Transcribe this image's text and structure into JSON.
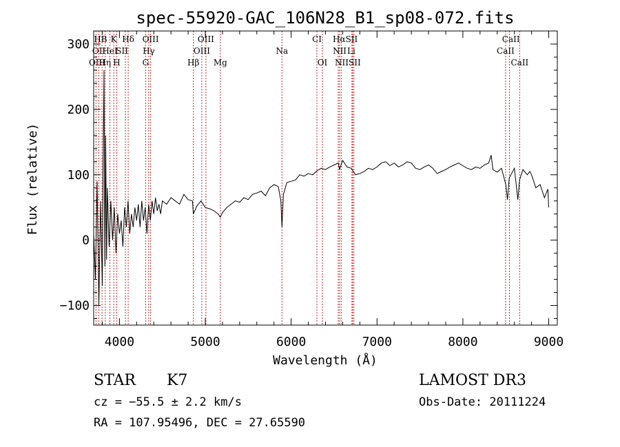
{
  "chart_data": {
    "type": "line",
    "title": "spec-55920-GAC_106N28_B1_sp08-072.fits",
    "xlabel": "Wavelength (Å)",
    "ylabel": "Flux (relative)",
    "xlim": [
      3700,
      9100
    ],
    "ylim": [
      -130,
      320
    ],
    "xticks": [
      4000,
      5000,
      6000,
      7000,
      8000,
      9000
    ],
    "yticks": [
      -100,
      0,
      100,
      200,
      300
    ],
    "grid": false,
    "series": [
      {
        "name": "flux",
        "x": [
          3700,
          3720,
          3740,
          3760,
          3780,
          3800,
          3810,
          3820,
          3830,
          3840,
          3850,
          3860,
          3880,
          3900,
          3920,
          3940,
          3960,
          3980,
          4000,
          4020,
          4040,
          4060,
          4080,
          4100,
          4120,
          4140,
          4160,
          4180,
          4200,
          4220,
          4240,
          4260,
          4280,
          4300,
          4320,
          4340,
          4360,
          4380,
          4400,
          4420,
          4440,
          4460,
          4480,
          4500,
          4550,
          4600,
          4650,
          4700,
          4750,
          4800,
          4850,
          4861,
          4900,
          4950,
          5000,
          5050,
          5100,
          5150,
          5175,
          5200,
          5250,
          5300,
          5350,
          5400,
          5450,
          5500,
          5550,
          5600,
          5650,
          5700,
          5750,
          5800,
          5850,
          5880,
          5893,
          5910,
          5950,
          6000,
          6050,
          6100,
          6150,
          6200,
          6250,
          6300,
          6350,
          6400,
          6450,
          6500,
          6550,
          6563,
          6600,
          6650,
          6700,
          6750,
          6800,
          6850,
          6900,
          6950,
          7000,
          7050,
          7100,
          7150,
          7200,
          7250,
          7300,
          7350,
          7400,
          7450,
          7500,
          7550,
          7600,
          7650,
          7700,
          7750,
          7800,
          7850,
          7900,
          7950,
          8000,
          8050,
          8100,
          8150,
          8200,
          8250,
          8300,
          8330,
          8350,
          8400,
          8450,
          8500,
          8520,
          8540,
          8560,
          8600,
          8640,
          8660,
          8700,
          8750,
          8780,
          8800,
          8850,
          8900,
          8950,
          8990,
          9000
        ],
        "values": [
          10,
          -60,
          90,
          -100,
          60,
          -70,
          120,
          260,
          -40,
          160,
          -30,
          80,
          -10,
          60,
          0,
          50,
          -20,
          40,
          10,
          30,
          -10,
          50,
          20,
          60,
          10,
          40,
          20,
          50,
          30,
          55,
          20,
          60,
          30,
          50,
          10,
          55,
          30,
          60,
          40,
          65,
          45,
          55,
          40,
          60,
          55,
          65,
          60,
          55,
          70,
          62,
          60,
          40,
          52,
          60,
          50,
          48,
          45,
          40,
          35,
          42,
          50,
          55,
          60,
          58,
          65,
          62,
          70,
          72,
          75,
          68,
          80,
          85,
          82,
          60,
          20,
          70,
          88,
          90,
          92,
          100,
          98,
          102,
          100,
          106,
          110,
          108,
          112,
          115,
          118,
          108,
          122,
          112,
          110,
          100,
          102,
          105,
          110,
          108,
          112,
          118,
          120,
          114,
          118,
          112,
          115,
          120,
          118,
          110,
          108,
          112,
          115,
          110,
          102,
          105,
          108,
          112,
          115,
          118,
          114,
          110,
          108,
          112,
          110,
          115,
          118,
          130,
          108,
          104,
          110,
          85,
          62,
          95,
          100,
          110,
          62,
          92,
          108,
          100,
          105,
          100,
          80,
          85,
          65,
          78,
          50
        ]
      }
    ],
    "lines_red": [
      {
        "label": "HB",
        "x": 3797
      },
      {
        "label": "OII",
        "x": 3727
      },
      {
        "label": "OIII",
        "x": 3760
      },
      {
        "label": "Hη",
        "x": 3835
      },
      {
        "label": "K",
        "x": 3934
      },
      {
        "label": "HeI",
        "x": 3889
      },
      {
        "label": "H",
        "x": 3969
      },
      {
        "label": "SII",
        "x": 4069
      },
      {
        "label": "Hδ",
        "x": 4102
      },
      {
        "label": "OIII",
        "x": 4363
      },
      {
        "label": "Hγ",
        "x": 4341
      },
      {
        "label": "G",
        "x": 4305
      },
      {
        "label": "Hβ",
        "x": 4861
      },
      {
        "label": "OIII",
        "x": 4959
      },
      {
        "label": "OIII",
        "x": 5007
      },
      {
        "label": "Mg",
        "x": 5175
      },
      {
        "label": "Na",
        "x": 5893
      },
      {
        "label": "CI",
        "x": 6300
      },
      {
        "label": "OI",
        "x": 6364
      },
      {
        "label": "NII",
        "x": 6548
      },
      {
        "label": "Hα",
        "x": 6563
      },
      {
        "label": "NII",
        "x": 6583
      },
      {
        "label": "Li",
        "x": 6708
      },
      {
        "label": "SII",
        "x": 6716
      },
      {
        "label": "SII",
        "x": 6731
      },
      {
        "label": "CaII",
        "x": 8498
      },
      {
        "label": "CaII",
        "x": 8542
      },
      {
        "label": "CaII",
        "x": 8662
      }
    ],
    "line_labels": [
      {
        "text": "HB",
        "x": 3780,
        "row": 1
      },
      {
        "text": "K",
        "x": 3934,
        "row": 1
      },
      {
        "text": "Hδ",
        "x": 4102,
        "row": 1
      },
      {
        "text": "OIII",
        "x": 4363,
        "row": 1
      },
      {
        "text": "OIII",
        "x": 5007,
        "row": 1
      },
      {
        "text": "CI",
        "x": 6300,
        "row": 1
      },
      {
        "text": "HαSII",
        "x": 6630,
        "row": 1
      },
      {
        "text": "CaII",
        "x": 8560,
        "row": 1
      },
      {
        "text": "OII",
        "x": 3760,
        "row": 2
      },
      {
        "text": "HeI",
        "x": 3889,
        "row": 2
      },
      {
        "text": "SII",
        "x": 4030,
        "row": 2
      },
      {
        "text": "Hγ",
        "x": 4341,
        "row": 2
      },
      {
        "text": "OIII",
        "x": 4959,
        "row": 2
      },
      {
        "text": "Na",
        "x": 5893,
        "row": 2
      },
      {
        "text": "NII",
        "x": 6565,
        "row": 2
      },
      {
        "text": "Li",
        "x": 6700,
        "row": 2
      },
      {
        "text": "CaII",
        "x": 8498,
        "row": 2
      },
      {
        "text": "OIII",
        "x": 3740,
        "row": 3
      },
      {
        "text": "Hη",
        "x": 3830,
        "row": 3
      },
      {
        "text": "H",
        "x": 3969,
        "row": 3
      },
      {
        "text": "G",
        "x": 4305,
        "row": 3
      },
      {
        "text": "Hβ",
        "x": 4861,
        "row": 3
      },
      {
        "text": "Mg",
        "x": 5175,
        "row": 3
      },
      {
        "text": "OI",
        "x": 6364,
        "row": 3
      },
      {
        "text": "NIISII",
        "x": 6660,
        "row": 3
      },
      {
        "text": "CaII",
        "x": 8662,
        "row": 3
      }
    ]
  },
  "info": {
    "object": "STAR",
    "subclass": "K7",
    "cz": "cz = −55.5 ± 2.2 km/s",
    "radec": "RA = 107.95496, DEC =  27.65590",
    "survey": "LAMOST DR3",
    "obsdate": "Obs-Date: 20111224"
  }
}
